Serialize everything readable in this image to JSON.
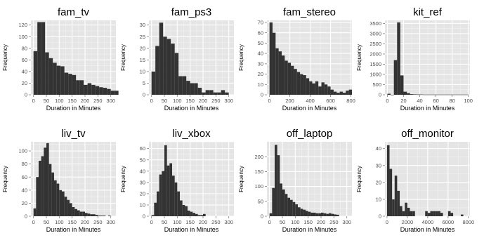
{
  "chart_data": [
    {
      "type": "bar",
      "title": "fam_tv",
      "xlabel": "Duration in Minutes",
      "ylabel": "Frequency",
      "bin_width": 15,
      "xlim": [
        -10,
        320
      ],
      "ylim": [
        0,
        128
      ],
      "xticks": [
        0,
        50,
        100,
        150,
        200,
        250,
        300
      ],
      "yticks": [
        0,
        20,
        40,
        60,
        80,
        100,
        120
      ],
      "values": [
        75,
        125,
        125,
        73,
        63,
        55,
        50,
        49,
        38,
        36,
        34,
        25,
        25,
        17,
        20,
        17,
        15,
        13,
        12,
        10,
        7,
        7
      ]
    },
    {
      "type": "bar",
      "title": "fam_ps3",
      "xlabel": "Duration in Minutes",
      "ylabel": "Frequency",
      "bin_width": 15,
      "xlim": [
        -10,
        320
      ],
      "ylim": [
        0,
        32
      ],
      "xticks": [
        0,
        50,
        100,
        150,
        200,
        250,
        300
      ],
      "yticks": [
        0,
        5,
        10,
        15,
        20,
        25,
        30
      ],
      "values": [
        10,
        21,
        31,
        25,
        24,
        22,
        18,
        8,
        8,
        6,
        5,
        5,
        3,
        1,
        2,
        2,
        1,
        1,
        2,
        1
      ]
    },
    {
      "type": "bar",
      "title": "fam_stereo",
      "xlabel": "Duration in Minutes",
      "ylabel": "Frequency",
      "bin_width": 30,
      "xlim": [
        -25,
        810
      ],
      "ylim": [
        0,
        72
      ],
      "xticks": [
        0,
        200,
        400,
        600,
        800
      ],
      "yticks": [
        0,
        10,
        20,
        30,
        40,
        50,
        60,
        70
      ],
      "values": [
        70,
        60,
        45,
        42,
        38,
        33,
        31,
        28,
        25,
        22,
        20,
        19,
        16,
        13,
        11,
        13,
        8,
        12,
        10,
        8,
        5,
        3,
        2,
        3,
        2,
        4,
        5
      ]
    },
    {
      "type": "bar",
      "title": "kit_ref",
      "xlabel": "Duration in Minutes",
      "ylabel": "Frequency",
      "bin_width": 4,
      "xlim": [
        -3,
        102
      ],
      "ylim": [
        0,
        3650
      ],
      "xticks": [
        0,
        20,
        40,
        60,
        80,
        100
      ],
      "yticks": [
        0,
        500,
        1000,
        1500,
        2000,
        2500,
        3000,
        3500
      ],
      "values": [
        50,
        1,
        1700,
        3550,
        950,
        150,
        80,
        30,
        20,
        15,
        15,
        10,
        10,
        10,
        10,
        10,
        10,
        10,
        10,
        10,
        10,
        10,
        10,
        10,
        10
      ]
    },
    {
      "type": "bar",
      "title": "liv_tv",
      "xlabel": "Duration in Minutes",
      "ylabel": "Frequency",
      "bin_width": 10,
      "xlim": [
        -10,
        320
      ],
      "ylim": [
        0,
        114
      ],
      "xticks": [
        0,
        50,
        100,
        150,
        200,
        250,
        300
      ],
      "yticks": [
        0,
        20,
        40,
        60,
        80,
        100
      ],
      "values": [
        12,
        60,
        85,
        92,
        105,
        112,
        80,
        67,
        55,
        50,
        40,
        38,
        30,
        25,
        20,
        14,
        11,
        9,
        7,
        7,
        5,
        4,
        3,
        3,
        2,
        1,
        1,
        1,
        0,
        1
      ]
    },
    {
      "type": "bar",
      "title": "liv_xbox",
      "xlabel": "Duration in Minutes",
      "ylabel": "Frequency",
      "bin_width": 10,
      "xlim": [
        -10,
        320
      ],
      "ylim": [
        0,
        66
      ],
      "xticks": [
        0,
        50,
        100,
        150,
        200,
        250,
        300
      ],
      "yticks": [
        0,
        10,
        20,
        30,
        40,
        50,
        60
      ],
      "values": [
        1,
        12,
        22,
        37,
        40,
        63,
        45,
        47,
        36,
        30,
        22,
        14,
        10,
        9,
        5,
        4,
        3,
        2,
        1,
        1,
        2
      ]
    },
    {
      "type": "bar",
      "title": "off_laptop",
      "xlabel": "Duration in Minutes",
      "ylabel": "Frequency",
      "bin_width": 10,
      "xlim": [
        -10,
        320
      ],
      "ylim": [
        0,
        250
      ],
      "xticks": [
        0,
        50,
        100,
        150,
        200,
        250,
        300
      ],
      "yticks": [
        0,
        50,
        100,
        150,
        200
      ],
      "values": [
        10,
        95,
        240,
        205,
        110,
        90,
        75,
        62,
        55,
        48,
        40,
        30,
        25,
        22,
        18,
        15,
        12,
        12,
        10,
        10,
        12,
        10,
        8,
        10,
        8,
        6,
        5
      ]
    },
    {
      "type": "bar",
      "title": "off_monitor",
      "xlabel": "Duration in Minutes",
      "ylabel": "Frequency",
      "bin_width": 250,
      "xlim": [
        -200,
        8150
      ],
      "ylim": [
        0,
        44
      ],
      "xticks": [
        0,
        2000,
        4000,
        6000,
        8000
      ],
      "yticks": [
        0,
        10,
        20,
        30,
        40
      ],
      "values": [
        42,
        28,
        10,
        24,
        15,
        6,
        3,
        8,
        5,
        3,
        3,
        0,
        0,
        0,
        0,
        3,
        2,
        3,
        3,
        3,
        3,
        2,
        0,
        0,
        3,
        2,
        0,
        0,
        0,
        1
      ]
    }
  ]
}
